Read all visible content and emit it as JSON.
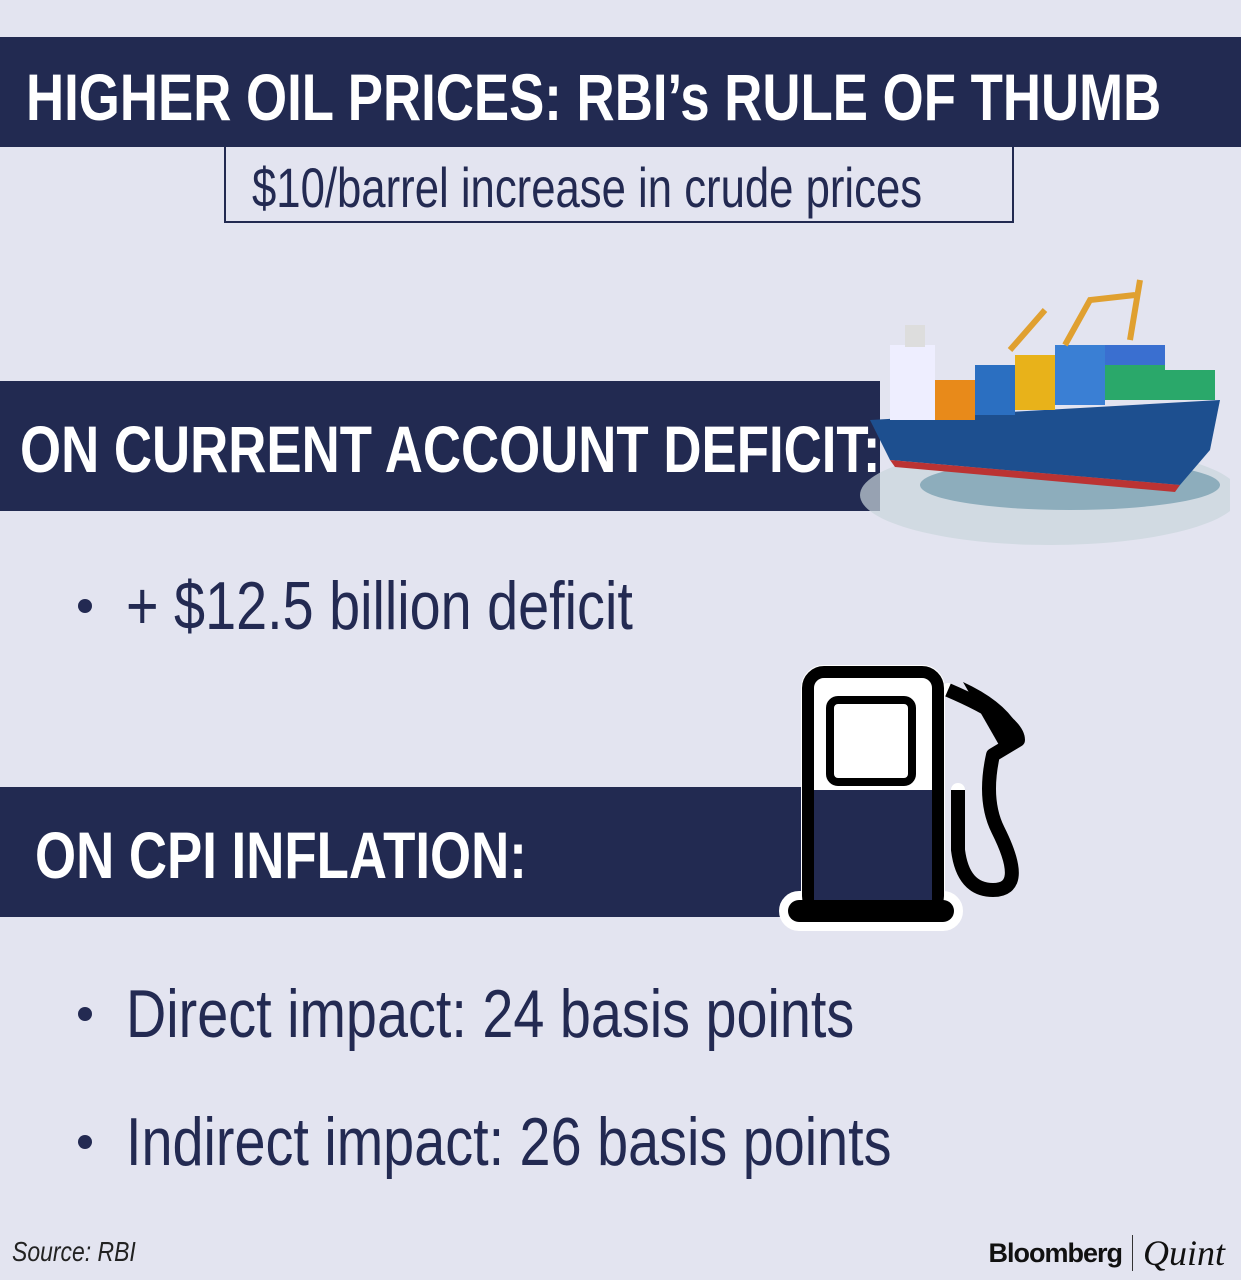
{
  "header": {
    "title": "HIGHER OIL PRICES: RBI’s RULE OF THUMB",
    "subtitle": "$10/barrel increase in crude prices"
  },
  "sections": [
    {
      "title": "ON CURRENT ACCOUNT DEFICIT:",
      "icon": "container-ship-icon",
      "bullets": [
        "+ $12.5 billion deficit"
      ]
    },
    {
      "title": "ON CPI INFLATION:",
      "icon": "fuel-pump-icon",
      "bullets": [
        "Direct impact: 24 basis points",
        "Indirect impact: 26 basis points"
      ]
    }
  ],
  "footer": {
    "source": "Source: RBI",
    "logo_left": "Bloomberg",
    "logo_right": "Quint"
  },
  "colors": {
    "navy": "#222a51",
    "background": "#e3e4f0",
    "text": "#232a52"
  }
}
